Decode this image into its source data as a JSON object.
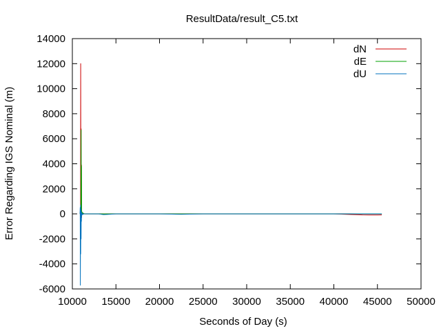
{
  "chart_data": {
    "type": "line",
    "title": "ResultData/result_C5.txt",
    "xlabel": "Seconds of Day (s)",
    "ylabel": "Error Regarding IGS Nominal (m)",
    "xlim": [
      10000,
      50000
    ],
    "ylim": [
      -6000,
      14000
    ],
    "x_ticks": [
      10000,
      15000,
      20000,
      25000,
      30000,
      35000,
      40000,
      45000,
      50000
    ],
    "y_ticks": [
      -6000,
      -4000,
      -2000,
      0,
      2000,
      4000,
      6000,
      8000,
      10000,
      12000,
      14000
    ],
    "grid": false,
    "legend_position": "top-right",
    "series": [
      {
        "name": "dN",
        "color": "#cc0000",
        "x": [
          10900,
          10920,
          10940,
          10960,
          10980,
          11000,
          11020,
          11040,
          11060,
          11080,
          11100,
          11150,
          11200,
          11300,
          11500,
          12000,
          13000,
          15000,
          20000,
          25000,
          30000,
          35000,
          40000,
          43300,
          44000,
          45000,
          45500
        ],
        "y": [
          0,
          300,
          -1200,
          12000,
          -800,
          6800,
          500,
          3900,
          -300,
          200,
          100,
          50,
          0,
          0,
          0,
          0,
          0,
          0,
          0,
          0,
          0,
          0,
          0,
          -80,
          -90,
          -90,
          -80
        ]
      },
      {
        "name": "dE",
        "color": "#00a000",
        "x": [
          10900,
          10920,
          10940,
          10960,
          10980,
          11000,
          11020,
          11040,
          11060,
          11080,
          11100,
          11150,
          11200,
          11300,
          11500,
          12000,
          13000,
          15000,
          20000,
          25000,
          30000,
          35000,
          40000,
          45000,
          45500
        ],
        "y": [
          0,
          -200,
          400,
          -1500,
          600,
          6700,
          -400,
          3800,
          300,
          -100,
          150,
          50,
          80,
          20,
          0,
          0,
          0,
          0,
          0,
          0,
          0,
          0,
          0,
          0,
          0
        ]
      },
      {
        "name": "dU",
        "color": "#0072bd",
        "x": [
          10880,
          10900,
          10920,
          10940,
          10960,
          10980,
          11000,
          11020,
          11040,
          11060,
          11080,
          11100,
          11150,
          11200,
          11300,
          11500,
          12000,
          13000,
          13600,
          15000,
          20000,
          22500,
          25000,
          30000,
          35000,
          40000,
          45000,
          45500
        ],
        "y": [
          0,
          500,
          -5700,
          700,
          -3200,
          400,
          -2000,
          200,
          -600,
          100,
          50,
          -100,
          30,
          -50,
          0,
          0,
          0,
          0,
          -60,
          0,
          0,
          -40,
          0,
          0,
          0,
          0,
          0,
          0
        ]
      }
    ]
  }
}
